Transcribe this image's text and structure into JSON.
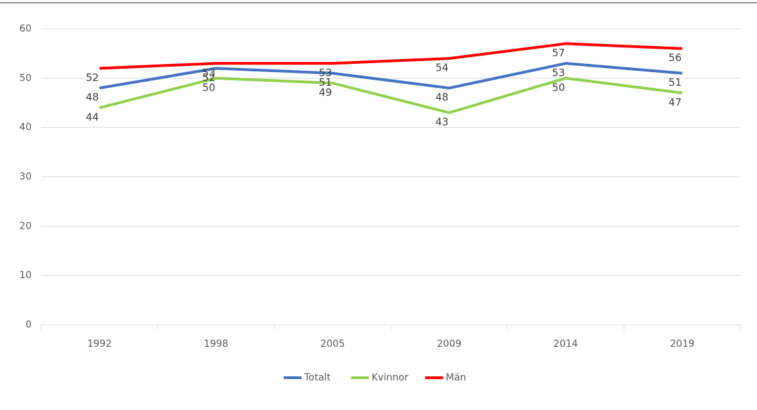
{
  "chart_data": {
    "type": "line",
    "categories": [
      "1992",
      "1998",
      "2005",
      "2009",
      "2014",
      "2019"
    ],
    "series": [
      {
        "name": "Totalt",
        "color": "#4472c4",
        "values": [
          48,
          52,
          51,
          48,
          53,
          51
        ]
      },
      {
        "name": "Kvinnor",
        "color": "#92d050",
        "values": [
          44,
          50,
          49,
          43,
          50,
          47
        ]
      },
      {
        "name": "Män",
        "color": "#ff0000",
        "values": [
          52,
          53,
          53,
          54,
          57,
          56
        ]
      }
    ],
    "ylim": [
      0,
      60
    ],
    "yticks": [
      0,
      10,
      20,
      30,
      40,
      50,
      60
    ],
    "grid": true,
    "legend": "bottom"
  }
}
